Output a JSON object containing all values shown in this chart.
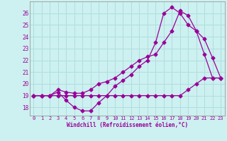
{
  "xlabel": "Windchill (Refroidissement éolien,°C)",
  "xlim": [
    -0.5,
    23.5
  ],
  "ylim": [
    17.3,
    27.0
  ],
  "bg_color": "#cdf0f0",
  "line_color": "#990099",
  "grid_color": "#b0dede",
  "xticks": [
    0,
    1,
    2,
    3,
    4,
    5,
    6,
    7,
    8,
    9,
    10,
    11,
    12,
    13,
    14,
    15,
    16,
    17,
    18,
    19,
    20,
    21,
    22,
    23
  ],
  "yticks": [
    18,
    19,
    20,
    21,
    22,
    23,
    24,
    25,
    26
  ],
  "curve1_x": [
    0,
    1,
    2,
    3,
    4,
    5,
    6,
    7,
    8,
    9,
    10,
    11,
    12,
    13,
    14,
    15,
    16,
    17,
    18,
    19,
    20,
    21,
    22,
    23
  ],
  "curve1_y": [
    19.0,
    19.0,
    19.0,
    19.3,
    18.6,
    18.0,
    17.7,
    17.7,
    18.4,
    19.0,
    19.0,
    19.0,
    19.0,
    19.0,
    19.0,
    19.0,
    19.0,
    19.0,
    19.0,
    19.5,
    20.0,
    20.5,
    20.5,
    20.5
  ],
  "curve2_x": [
    0,
    1,
    2,
    3,
    4,
    5,
    6,
    7,
    8,
    9,
    10,
    11,
    12,
    13,
    14,
    15,
    16,
    17,
    18,
    19,
    20,
    21,
    22,
    23
  ],
  "curve2_y": [
    19.0,
    19.0,
    19.0,
    19.5,
    19.3,
    19.2,
    19.2,
    19.5,
    20.0,
    20.2,
    20.5,
    21.0,
    21.5,
    22.0,
    22.3,
    22.5,
    23.5,
    24.5,
    26.2,
    25.8,
    24.5,
    23.8,
    22.2,
    20.5
  ],
  "curve3_x": [
    0,
    1,
    2,
    3,
    4,
    5,
    6,
    7,
    8,
    9,
    10,
    11,
    12,
    13,
    14,
    15,
    16,
    17,
    18,
    19,
    20,
    21,
    22,
    23
  ],
  "curve3_y": [
    19.0,
    19.0,
    19.0,
    19.0,
    19.0,
    19.0,
    19.0,
    19.0,
    19.0,
    19.0,
    19.8,
    20.3,
    20.8,
    21.5,
    22.0,
    23.5,
    26.0,
    26.5,
    26.0,
    25.0,
    24.5,
    22.5,
    20.5,
    20.5
  ]
}
